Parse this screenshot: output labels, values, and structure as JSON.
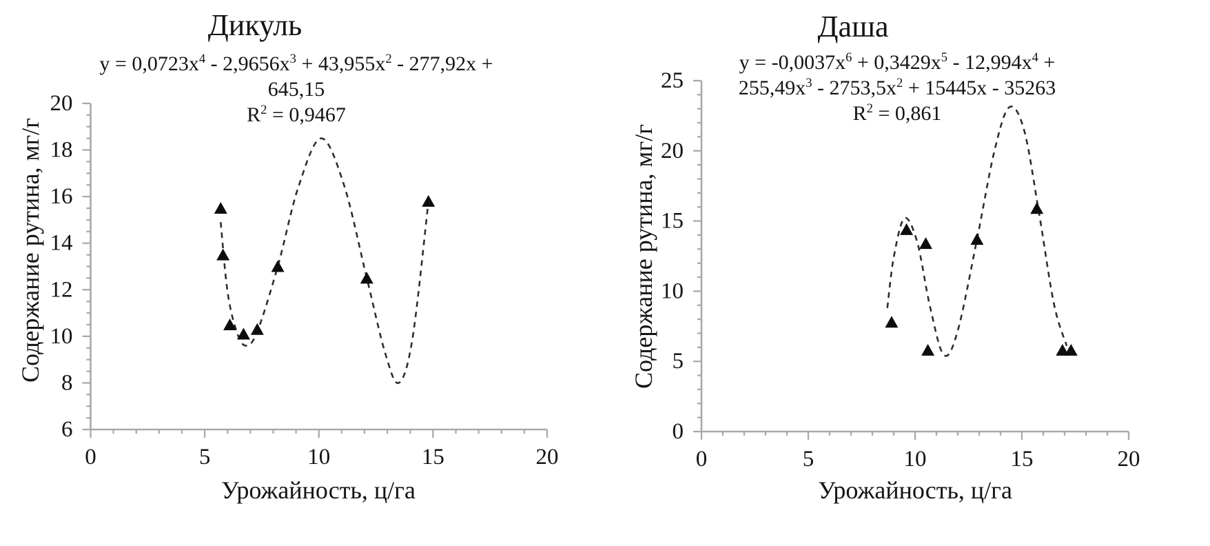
{
  "figure": {
    "background": "#ffffff",
    "axis_color": "#a9a9a9",
    "curve_color": "#2e2e2e",
    "marker_color": "#0d0d0d",
    "text_color": "#141414"
  },
  "chart_data": [
    {
      "type": "scatter",
      "title": "Дикуль",
      "equation_lines": [
        "y = 0,0723x^4 - 2,9656x^3 + 43,955x^2 - 277,92x +",
        "645,15",
        "R^2 = 0,9467"
      ],
      "xlabel": "Урожайность, ц/га",
      "ylabel": "Содержание рутина, мг/г",
      "xlim": [
        0,
        20
      ],
      "ylim": [
        6,
        20
      ],
      "x_ticks": [
        0,
        5,
        10,
        15,
        20
      ],
      "y_ticks": [
        6,
        8,
        10,
        12,
        14,
        16,
        18,
        20
      ],
      "x_minor_step": 1,
      "y_minor_step": 0.5,
      "grid": false,
      "legend": false,
      "marker": "triangle",
      "trendline_style": "dashed",
      "points": [
        [
          5.7,
          15.5
        ],
        [
          5.8,
          13.5
        ],
        [
          6.1,
          10.5
        ],
        [
          6.7,
          10.1
        ],
        [
          7.3,
          10.3
        ],
        [
          8.2,
          13.0
        ],
        [
          12.1,
          12.5
        ],
        [
          14.8,
          15.8
        ]
      ],
      "trend_curve": [
        [
          5.7,
          14.9
        ],
        [
          6.0,
          11.9
        ],
        [
          6.4,
          10.2
        ],
        [
          6.8,
          9.6
        ],
        [
          7.3,
          10.2
        ],
        [
          8.2,
          13.0
        ],
        [
          9.1,
          16.4
        ],
        [
          10.1,
          18.5
        ],
        [
          11.1,
          16.5
        ],
        [
          12.1,
          12.5
        ],
        [
          12.9,
          9.3
        ],
        [
          13.5,
          8.0
        ],
        [
          14.1,
          9.9
        ],
        [
          14.8,
          15.8
        ]
      ]
    },
    {
      "type": "scatter",
      "title": "Даша",
      "equation_lines": [
        "y = -0,0037x^6 + 0,3429x^5 - 12,994x^4 +",
        "255,49x^3 - 2753,5x^2 + 15445x - 35263",
        "R^2 = 0,861"
      ],
      "xlabel": "Урожайность, ц/га",
      "ylabel": "Содержание рутина, мг/г",
      "xlim": [
        0,
        20
      ],
      "ylim": [
        0,
        25
      ],
      "x_ticks": [
        0,
        5,
        10,
        15,
        20
      ],
      "y_ticks": [
        0,
        5,
        10,
        15,
        20,
        25
      ],
      "x_minor_step": 1,
      "y_minor_step": 1,
      "grid": false,
      "legend": false,
      "marker": "triangle",
      "trendline_style": "dashed",
      "points": [
        [
          8.9,
          7.8
        ],
        [
          9.6,
          14.4
        ],
        [
          10.5,
          13.4
        ],
        [
          10.6,
          5.8
        ],
        [
          12.9,
          13.7
        ],
        [
          15.7,
          15.9
        ],
        [
          16.9,
          5.8
        ],
        [
          17.3,
          5.8
        ]
      ],
      "trend_curve": [
        [
          8.7,
          8.8
        ],
        [
          9.0,
          12.4
        ],
        [
          9.5,
          15.2
        ],
        [
          10.1,
          13.5
        ],
        [
          10.7,
          8.9
        ],
        [
          11.35,
          5.45
        ],
        [
          12.0,
          7.2
        ],
        [
          12.9,
          13.7
        ],
        [
          13.7,
          19.9
        ],
        [
          14.4,
          23.1
        ],
        [
          15.1,
          21.5
        ],
        [
          15.8,
          15.6
        ],
        [
          16.5,
          9.1
        ],
        [
          17.1,
          6.1
        ]
      ]
    }
  ]
}
